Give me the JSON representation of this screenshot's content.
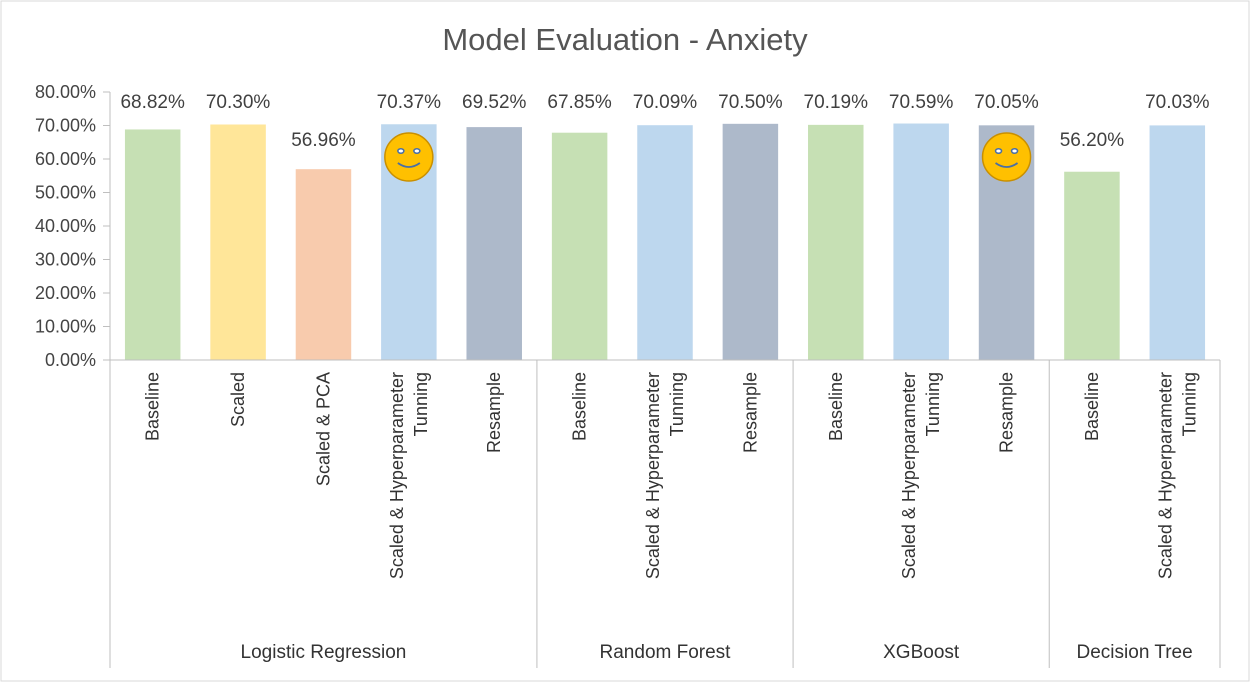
{
  "chart_data": {
    "type": "bar",
    "title": "Model Evaluation - Anxiety",
    "xlabel": "",
    "ylabel": "",
    "ylim": [
      0,
      80
    ],
    "yticks": [
      "0.00%",
      "10.00%",
      "20.00%",
      "30.00%",
      "40.00%",
      "50.00%",
      "60.00%",
      "70.00%",
      "80.00%"
    ],
    "grid": false,
    "legend": "none",
    "groups": [
      {
        "name": "Logistic Regression",
        "bars": [
          {
            "category": [
              "Baseline"
            ],
            "value": 68.82,
            "label": "68.82%",
            "color": "#c6e0b4"
          },
          {
            "category": [
              "Scaled"
            ],
            "value": 70.3,
            "label": "70.30%",
            "color": "#ffe699"
          },
          {
            "category": [
              "Scaled & PCA"
            ],
            "value": 56.96,
            "label": "56.96%",
            "color": "#f8cbad"
          },
          {
            "category": [
              "Scaled & Hyperparameter",
              "Tunning"
            ],
            "value": 70.37,
            "label": "70.37%",
            "color": "#bdd7ee",
            "annotation": "smiley-face"
          },
          {
            "category": [
              "Resample"
            ],
            "value": 69.52,
            "label": "69.52%",
            "color": "#adb9ca"
          }
        ]
      },
      {
        "name": "Random Forest",
        "bars": [
          {
            "category": [
              "Baseline"
            ],
            "value": 67.85,
            "label": "67.85%",
            "color": "#c6e0b4"
          },
          {
            "category": [
              "Scaled & Hyperparameter",
              "Tunning"
            ],
            "value": 70.09,
            "label": "70.09%",
            "color": "#bdd7ee"
          },
          {
            "category": [
              "Resample"
            ],
            "value": 70.5,
            "label": "70.50%",
            "color": "#adb9ca"
          }
        ]
      },
      {
        "name": "XGBoost",
        "bars": [
          {
            "category": [
              "Baseline"
            ],
            "value": 70.19,
            "label": "70.19%",
            "color": "#c6e0b4"
          },
          {
            "category": [
              "Scaled & Hyperparameter",
              "Tunning"
            ],
            "value": 70.59,
            "label": "70.59%",
            "color": "#bdd7ee"
          },
          {
            "category": [
              "Resample"
            ],
            "value": 70.05,
            "label": "70.05%",
            "color": "#adb9ca",
            "annotation": "smiley-face"
          }
        ]
      },
      {
        "name": "Decision Tree",
        "bars": [
          {
            "category": [
              "Baseline"
            ],
            "value": 56.2,
            "label": "56.20%",
            "color": "#c6e0b4"
          },
          {
            "category": [
              "Scaled & Hyperparameter",
              "Tunning"
            ],
            "value": 70.03,
            "label": "70.03%",
            "color": "#bdd7ee"
          }
        ]
      }
    ],
    "smiley_color": "#ffc000",
    "axis_color": "#bfbfbf"
  }
}
